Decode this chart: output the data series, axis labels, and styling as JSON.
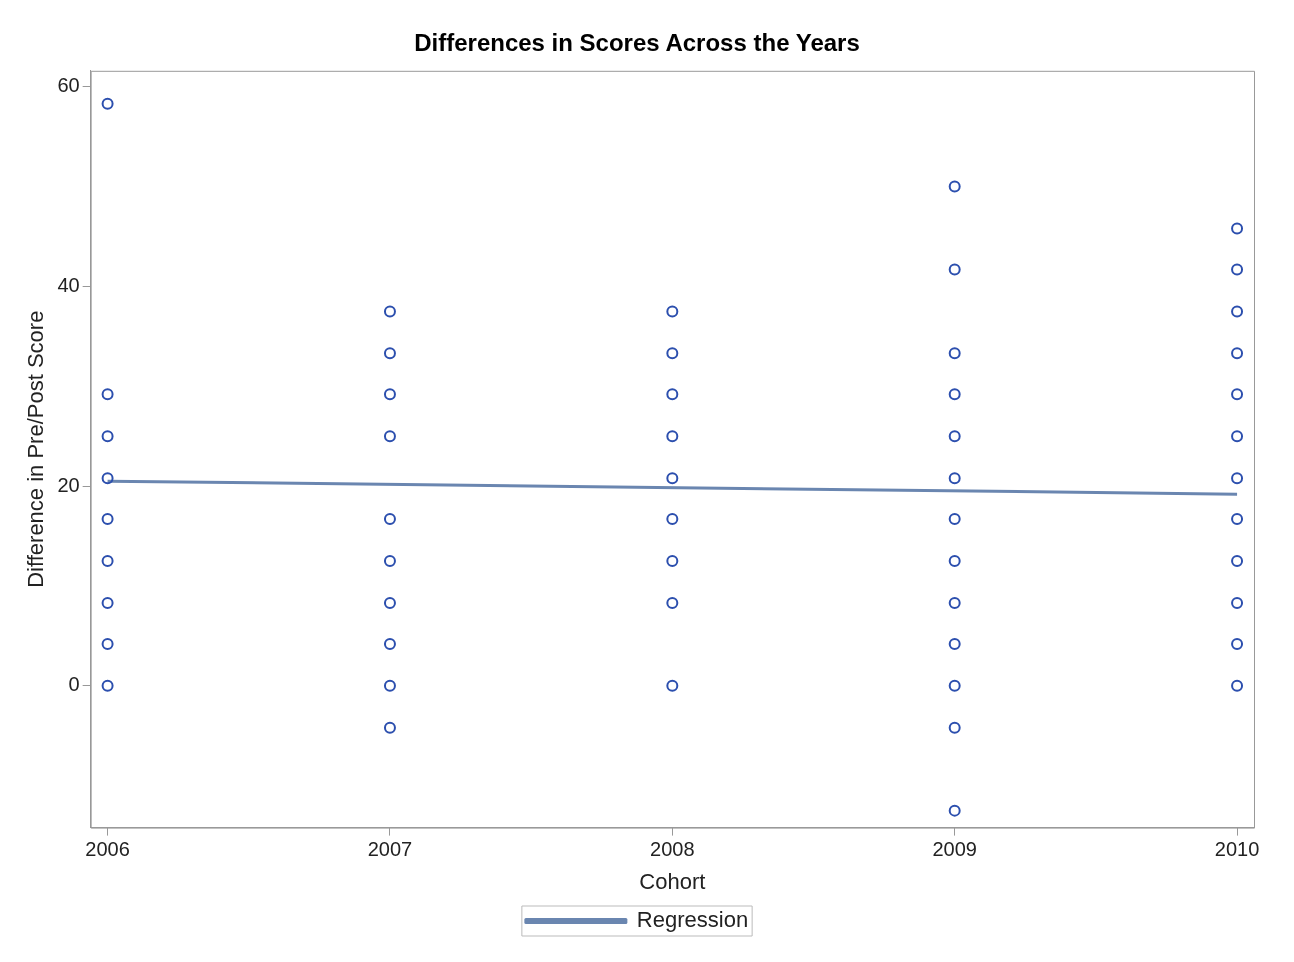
{
  "chart_data": {
    "type": "scatter",
    "title": "Differences in Scores Across the Years",
    "xlabel": "Cohort",
    "ylabel": "Difference in Pre/Post Score",
    "series": [
      {
        "type": "scatter",
        "marker": "circle",
        "color": "#2c4fae",
        "x": [
          2006,
          2006,
          2006,
          2006,
          2006,
          2006,
          2006,
          2006,
          2006,
          2007,
          2007,
          2007,
          2007,
          2007,
          2007,
          2007,
          2007,
          2007,
          2007,
          2008,
          2008,
          2008,
          2008,
          2008,
          2008,
          2008,
          2008,
          2008,
          2009,
          2009,
          2009,
          2009,
          2009,
          2009,
          2009,
          2009,
          2009,
          2009,
          2009,
          2009,
          2009,
          2010,
          2010,
          2010,
          2010,
          2010,
          2010,
          2010,
          2010,
          2010,
          2010,
          2010,
          2010
        ],
        "values": [
          58.3,
          29.2,
          25,
          20.8,
          16.7,
          12.5,
          8.3,
          4.2,
          0,
          37.5,
          33.3,
          29.2,
          25,
          16.7,
          12.5,
          8.3,
          4.2,
          0,
          -4.2,
          37.5,
          33.3,
          29.2,
          25,
          20.8,
          16.7,
          12.5,
          8.3,
          0,
          50,
          41.7,
          33.3,
          29.2,
          25,
          20.8,
          16.7,
          12.5,
          8.3,
          4.2,
          0,
          -4.2,
          -12.5,
          45.8,
          41.7,
          37.5,
          33.3,
          29.2,
          25,
          20.8,
          16.7,
          12.5,
          8.3,
          4.2,
          0
        ]
      },
      {
        "type": "line",
        "name": "Regression",
        "color": "#6a86b0",
        "x": [
          2006,
          2010
        ],
        "values": [
          20.5,
          19.2
        ]
      }
    ],
    "xlim": [
      2005.94,
      2010.06
    ],
    "xticks": [
      2006,
      2007,
      2008,
      2009,
      2010
    ],
    "ylim": [
      -14.2,
      61.6
    ],
    "yticks": [
      0,
      20,
      40,
      60
    ],
    "grid": false,
    "legend": "bottom",
    "line_style": "solid"
  }
}
